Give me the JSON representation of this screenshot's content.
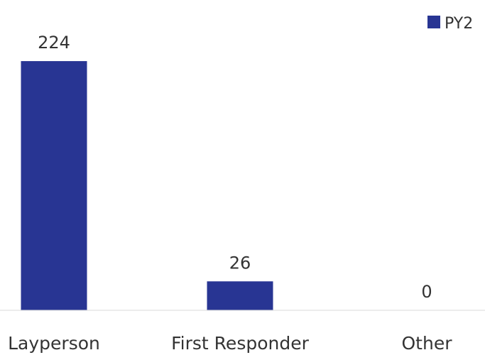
{
  "chart_data": {
    "type": "bar",
    "categories": [
      "Layperson",
      "First Responder",
      "Other"
    ],
    "series": [
      {
        "name": "PY2",
        "values": [
          224,
          26,
          0
        ]
      }
    ],
    "data_labels": [
      "224",
      "26",
      "0"
    ],
    "ylim": [
      0,
      270
    ],
    "grid": false,
    "legend": "top-right",
    "colors": {
      "bar": "#283593",
      "axis": "#d9d9d9",
      "text": "#333333"
    }
  }
}
